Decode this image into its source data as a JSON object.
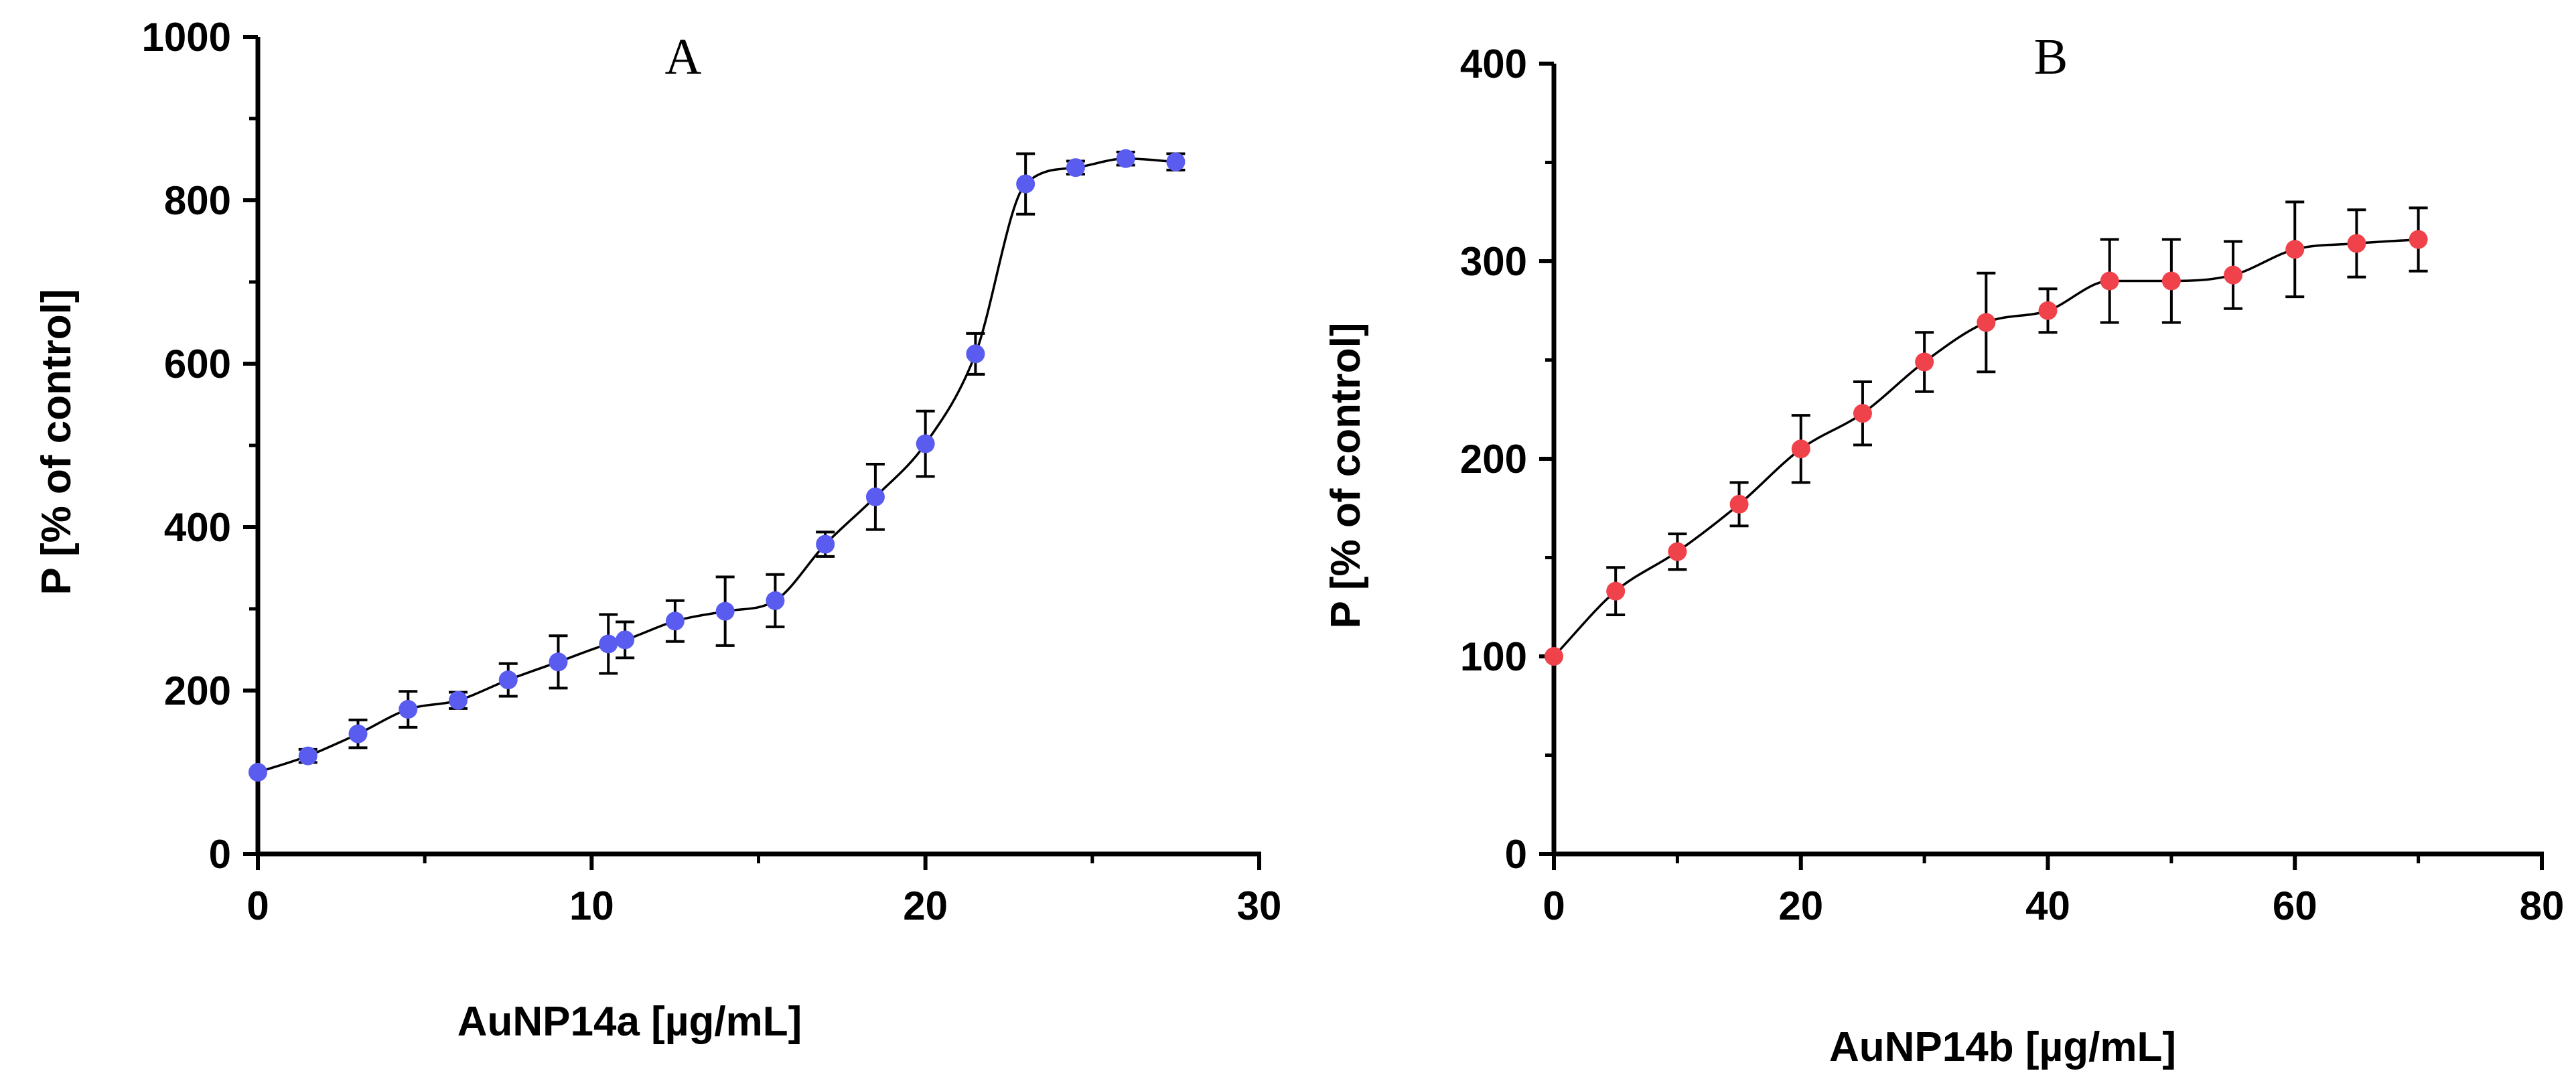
{
  "chart_data": [
    {
      "type": "line",
      "panel_label": "A",
      "title": "A",
      "xlabel": "AuNP14a [µg/mL]",
      "ylabel": "P [% of control]",
      "xlim": [
        0,
        30
      ],
      "ylim": [
        0,
        1000
      ],
      "xticks": [
        0,
        10,
        20,
        30
      ],
      "yticks": [
        0,
        200,
        400,
        600,
        800,
        1000
      ],
      "xtick_labels": [
        "0",
        "10",
        "20",
        "30"
      ],
      "ytick_labels": [
        "0",
        "200",
        "400",
        "600",
        "800",
        "1000"
      ],
      "grid": false,
      "series": [
        {
          "name": "AuNP14a",
          "color": "#5a5cf0",
          "x": [
            0,
            1.5,
            3,
            4.5,
            6,
            7.5,
            9,
            10.5,
            11,
            12.5,
            14,
            15.5,
            17,
            18.5,
            20,
            21.5,
            23,
            24.5,
            26,
            27.5
          ],
          "y": [
            100,
            120,
            147,
            177,
            188,
            213,
            235,
            257,
            262,
            285,
            297,
            310,
            379,
            437,
            502,
            612,
            820,
            840,
            851,
            847
          ],
          "error": [
            0,
            8,
            17,
            22,
            10,
            20,
            32,
            36,
            22,
            25,
            42,
            32,
            15,
            40,
            40,
            25,
            37,
            8,
            8,
            10
          ]
        }
      ]
    },
    {
      "type": "line",
      "panel_label": "B",
      "title": "B",
      "xlabel": "AuNP14b [µg/mL]",
      "ylabel": "P [% of control]",
      "xlim": [
        0,
        80
      ],
      "ylim": [
        0,
        400
      ],
      "xticks": [
        0,
        20,
        40,
        60,
        80
      ],
      "yticks": [
        0,
        100,
        200,
        300,
        400
      ],
      "xtick_labels": [
        "0",
        "20",
        "40",
        "60",
        "80"
      ],
      "ytick_labels": [
        "0",
        "100",
        "200",
        "300",
        "400"
      ],
      "grid": false,
      "series": [
        {
          "name": "AuNP14b",
          "color": "#f0424a",
          "x": [
            0,
            5,
            10,
            15,
            20,
            25,
            30,
            35,
            40,
            45,
            50,
            55,
            60,
            65,
            70
          ],
          "y": [
            100,
            133,
            153,
            177,
            205,
            223,
            249,
            269,
            275,
            290,
            290,
            293,
            306,
            309,
            311
          ],
          "error": [
            0,
            12,
            9,
            11,
            17,
            16,
            15,
            25,
            11,
            21,
            21,
            17,
            24,
            17,
            16
          ]
        }
      ]
    }
  ]
}
